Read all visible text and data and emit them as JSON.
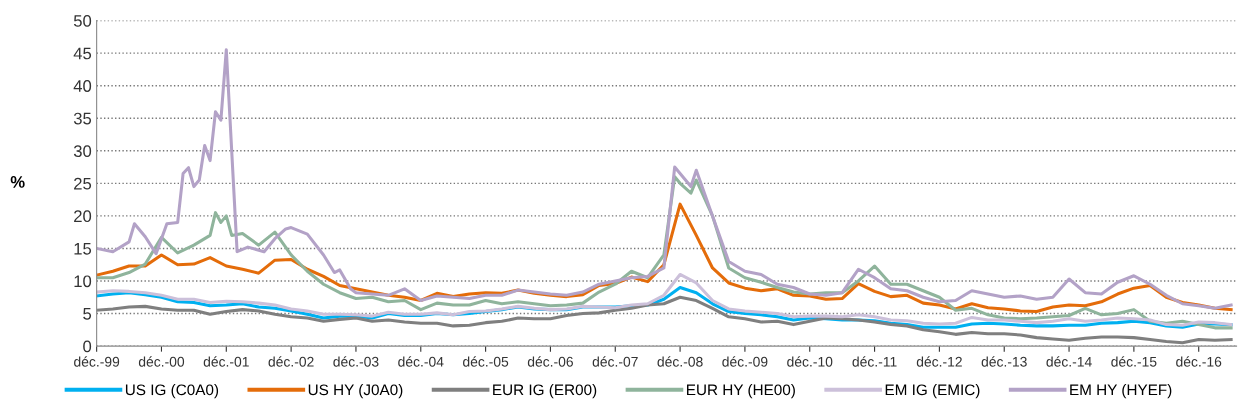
{
  "chart_data": {
    "type": "line",
    "ylabel": "%",
    "x": [
      "1999-12",
      "2000-03",
      "2000-06",
      "2000-09",
      "2000-12",
      "2001-03",
      "2001-06",
      "2001-09",
      "2001-12",
      "2002-03",
      "2002-06",
      "2002-09",
      "2002-12",
      "2003-03",
      "2003-06",
      "2003-09",
      "2003-12",
      "2004-03",
      "2004-06",
      "2004-09",
      "2004-12",
      "2005-03",
      "2005-06",
      "2005-09",
      "2005-12",
      "2006-03",
      "2006-06",
      "2006-09",
      "2006-12",
      "2007-03",
      "2007-06",
      "2007-09",
      "2007-12",
      "2008-03",
      "2008-06",
      "2008-09",
      "2008-12",
      "2009-03",
      "2009-06",
      "2009-09",
      "2009-12",
      "2010-03",
      "2010-06",
      "2010-09",
      "2010-12",
      "2011-03",
      "2011-06",
      "2011-09",
      "2011-12",
      "2012-03",
      "2012-06",
      "2012-09",
      "2012-12",
      "2013-03",
      "2013-06",
      "2013-09",
      "2013-12",
      "2014-03",
      "2014-06",
      "2014-09",
      "2014-12",
      "2015-03",
      "2015-06",
      "2015-09",
      "2015-12",
      "2016-03",
      "2016-06",
      "2016-09",
      "2016-12",
      "2017-03",
      "2017-06"
    ],
    "xlim": [
      "1999-12",
      "2017-07"
    ],
    "xticks": [
      {
        "value": "1999-12",
        "label": "déc.-99"
      },
      {
        "value": "2000-12",
        "label": "déc.-00"
      },
      {
        "value": "2001-12",
        "label": "déc.-01"
      },
      {
        "value": "2002-12",
        "label": "déc.-02"
      },
      {
        "value": "2003-12",
        "label": "déc.-03"
      },
      {
        "value": "2004-12",
        "label": "déc.-04"
      },
      {
        "value": "2005-12",
        "label": "déc.-05"
      },
      {
        "value": "2006-12",
        "label": "déc.-06"
      },
      {
        "value": "2007-12",
        "label": "déc.-07"
      },
      {
        "value": "2008-12",
        "label": "déc.-08"
      },
      {
        "value": "2009-12",
        "label": "déc.-09"
      },
      {
        "value": "2010-12",
        "label": "déc.-10"
      },
      {
        "value": "2011-12",
        "label": "déc.-11"
      },
      {
        "value": "2012-12",
        "label": "déc.-12"
      },
      {
        "value": "2013-12",
        "label": "déc.-13"
      },
      {
        "value": "2014-12",
        "label": "déc.-14"
      },
      {
        "value": "2015-12",
        "label": "déc.-15"
      },
      {
        "value": "2016-12",
        "label": "déc.-16"
      }
    ],
    "ylim": [
      0,
      50
    ],
    "yticks": [
      0,
      5,
      10,
      15,
      20,
      25,
      30,
      35,
      40,
      45,
      50
    ],
    "grid": "y",
    "legend": "bottom",
    "marker": "none",
    "line_style": "solid",
    "series": [
      {
        "name": "US IG (C0A0)",
        "color": "#00b0f0",
        "values": [
          7.7,
          8.0,
          8.2,
          7.9,
          7.5,
          6.8,
          6.7,
          6.2,
          6.3,
          6.5,
          6.0,
          5.8,
          5.4,
          4.9,
          4.3,
          4.6,
          4.6,
          4.3,
          5.0,
          4.7,
          4.7,
          5.0,
          4.8,
          5.0,
          5.3,
          5.6,
          6.0,
          5.7,
          5.6,
          5.6,
          6.0,
          6.0,
          6.0,
          6.2,
          6.3,
          7.2,
          9.0,
          8.2,
          6.5,
          5.3,
          5.0,
          4.8,
          4.5,
          4.0,
          4.3,
          4.2,
          4.0,
          4.0,
          3.9,
          3.5,
          3.3,
          2.9,
          2.9,
          2.9,
          3.4,
          3.5,
          3.4,
          3.2,
          3.1,
          3.1,
          3.2,
          3.2,
          3.5,
          3.6,
          3.8,
          3.6,
          3.1,
          2.9,
          3.4,
          3.4,
          3.3
        ]
      },
      {
        "name": "US HY (J0A0)",
        "color": "#e46c0a",
        "values": [
          10.9,
          11.5,
          12.3,
          12.3,
          14.0,
          12.5,
          12.6,
          13.6,
          12.3,
          11.8,
          11.2,
          13.2,
          13.3,
          11.8,
          10.7,
          9.3,
          8.8,
          8.3,
          7.8,
          7.5,
          7.0,
          8.1,
          7.6,
          8.0,
          8.2,
          8.1,
          8.6,
          8.1,
          7.8,
          7.6,
          7.9,
          9.3,
          9.6,
          10.6,
          9.9,
          12.5,
          21.8,
          17.0,
          12.0,
          9.7,
          8.9,
          8.5,
          8.8,
          7.8,
          7.7,
          7.2,
          7.3,
          9.6,
          8.4,
          7.6,
          7.8,
          6.6,
          6.3,
          5.7,
          6.5,
          5.9,
          5.7,
          5.4,
          5.3,
          6.0,
          6.3,
          6.2,
          6.8,
          8.0,
          8.9,
          9.3,
          7.5,
          6.7,
          6.3,
          5.8,
          5.6
        ]
      },
      {
        "name": "EUR IG (ER00)",
        "color": "#7f7f7f",
        "values": [
          5.5,
          5.7,
          6.0,
          6.1,
          5.7,
          5.5,
          5.5,
          4.9,
          5.3,
          5.6,
          5.4,
          4.9,
          4.5,
          4.3,
          3.8,
          4.1,
          4.3,
          3.8,
          4.0,
          3.7,
          3.5,
          3.5,
          3.1,
          3.2,
          3.6,
          3.8,
          4.3,
          4.2,
          4.2,
          4.7,
          5.0,
          5.1,
          5.5,
          5.8,
          6.3,
          6.5,
          7.5,
          7.0,
          5.8,
          4.5,
          4.2,
          3.7,
          3.8,
          3.3,
          3.8,
          4.3,
          4.2,
          4.0,
          3.7,
          3.3,
          3.1,
          2.5,
          2.2,
          1.8,
          2.1,
          1.9,
          1.9,
          1.7,
          1.3,
          1.1,
          0.9,
          1.2,
          1.4,
          1.4,
          1.3,
          1.0,
          0.7,
          0.5,
          1.0,
          0.9,
          1.0
        ]
      },
      {
        "name": "EUR HY (HE00)",
        "color": "#8fb49c",
        "x": [
          "1999-12",
          "2000-03",
          "2000-06",
          "2000-09",
          "2000-12",
          "2001-03",
          "2001-06",
          "2001-09",
          "2001-10",
          "2001-11",
          "2001-12",
          "2002-01",
          "2002-03",
          "2002-06",
          "2002-09",
          "2002-12",
          "2003-03",
          "2003-06",
          "2003-09",
          "2003-12",
          "2004-03",
          "2004-06",
          "2004-09",
          "2004-12",
          "2005-03",
          "2005-06",
          "2005-09",
          "2005-12",
          "2006-03",
          "2006-06",
          "2006-09",
          "2006-12",
          "2007-03",
          "2007-06",
          "2007-09",
          "2007-12",
          "2008-03",
          "2008-06",
          "2008-09",
          "2008-11",
          "2008-12",
          "2009-02",
          "2009-03",
          "2009-06",
          "2009-09",
          "2009-12",
          "2010-03",
          "2010-06",
          "2010-09",
          "2010-12",
          "2011-03",
          "2011-06",
          "2011-09",
          "2011-12",
          "2012-03",
          "2012-06",
          "2012-09",
          "2012-12",
          "2013-03",
          "2013-06",
          "2013-09",
          "2013-12",
          "2014-03",
          "2014-06",
          "2014-09",
          "2014-12",
          "2015-03",
          "2015-06",
          "2015-09",
          "2015-12",
          "2016-03",
          "2016-06",
          "2016-09",
          "2016-12",
          "2017-03",
          "2017-06"
        ],
        "values": [
          10.5,
          10.5,
          11.3,
          12.6,
          16.7,
          14.3,
          15.5,
          17.0,
          20.5,
          19.0,
          20.0,
          17.0,
          17.3,
          15.5,
          17.5,
          14.0,
          11.5,
          9.5,
          8.2,
          7.3,
          7.5,
          6.8,
          7.0,
          5.6,
          6.6,
          6.3,
          6.3,
          7.0,
          6.5,
          6.8,
          6.5,
          6.2,
          6.3,
          6.6,
          8.3,
          9.5,
          11.5,
          10.5,
          14.0,
          26.0,
          25.0,
          23.5,
          25.5,
          20.0,
          12.0,
          10.5,
          9.8,
          9.0,
          8.3,
          8.0,
          8.2,
          8.2,
          10.0,
          12.3,
          9.5,
          9.5,
          8.5,
          7.5,
          5.5,
          5.8,
          4.8,
          4.3,
          4.2,
          4.3,
          4.5,
          4.7,
          5.8,
          4.8,
          5.0,
          5.6,
          3.8,
          3.5,
          3.8,
          3.3,
          2.8,
          2.8
        ]
      },
      {
        "name": "EM IG (EMIC)",
        "color": "#ccc0da",
        "values": [
          8.3,
          8.5,
          8.4,
          8.2,
          7.8,
          7.2,
          7.2,
          6.7,
          6.9,
          6.8,
          6.6,
          6.3,
          5.7,
          5.4,
          4.9,
          4.9,
          4.8,
          4.6,
          5.2,
          4.9,
          4.9,
          5.1,
          4.8,
          5.3,
          5.4,
          5.7,
          6.1,
          5.8,
          5.6,
          5.7,
          6.1,
          6.0,
          5.9,
          6.3,
          6.5,
          7.8,
          11.0,
          9.7,
          7.0,
          5.7,
          5.4,
          5.2,
          5.0,
          4.5,
          4.6,
          4.6,
          4.5,
          4.8,
          4.5,
          4.0,
          3.9,
          3.5,
          3.4,
          3.5,
          4.4,
          4.0,
          4.0,
          3.8,
          3.6,
          3.8,
          4.2,
          3.8,
          4.0,
          4.3,
          4.2,
          4.0,
          3.3,
          3.2,
          3.7,
          3.6,
          3.3
        ]
      },
      {
        "name": "EM HY (HYEF)",
        "color": "#b3a2c7",
        "x": [
          "1999-12",
          "2000-03",
          "2000-06",
          "2000-07",
          "2000-09",
          "2000-11",
          "2001-01",
          "2001-03",
          "2001-04",
          "2001-05",
          "2001-06",
          "2001-07",
          "2001-08",
          "2001-09",
          "2001-10",
          "2001-11",
          "2001-12",
          "2002-02",
          "2002-04",
          "2002-07",
          "2002-09",
          "2002-11",
          "2002-12",
          "2003-03",
          "2003-06",
          "2003-08",
          "2003-09",
          "2003-11",
          "2003-12",
          "2004-03",
          "2004-06",
          "2004-09",
          "2004-12",
          "2005-03",
          "2005-06",
          "2005-09",
          "2005-12",
          "2006-03",
          "2006-06",
          "2006-09",
          "2006-12",
          "2007-03",
          "2007-06",
          "2007-09",
          "2007-12",
          "2008-03",
          "2008-06",
          "2008-09",
          "2008-11",
          "2008-12",
          "2009-02",
          "2009-03",
          "2009-06",
          "2009-09",
          "2009-12",
          "2010-03",
          "2010-06",
          "2010-09",
          "2010-12",
          "2011-03",
          "2011-06",
          "2011-09",
          "2011-12",
          "2012-03",
          "2012-06",
          "2012-09",
          "2012-12",
          "2013-03",
          "2013-06",
          "2013-09",
          "2013-12",
          "2014-03",
          "2014-06",
          "2014-09",
          "2014-12",
          "2015-03",
          "2015-06",
          "2015-09",
          "2015-12",
          "2016-03",
          "2016-06",
          "2016-09",
          "2016-12",
          "2017-03",
          "2017-06"
        ],
        "values": [
          15.0,
          14.5,
          16.0,
          18.8,
          16.8,
          14.2,
          18.8,
          19.0,
          26.5,
          27.4,
          24.5,
          25.5,
          30.8,
          28.5,
          36.0,
          34.7,
          45.5,
          14.5,
          15.2,
          14.5,
          16.5,
          18.0,
          18.2,
          17.2,
          14.0,
          11.3,
          11.7,
          8.8,
          8.2,
          8.0,
          7.8,
          8.8,
          7.0,
          7.7,
          7.5,
          7.3,
          7.8,
          7.8,
          8.6,
          8.3,
          8.0,
          7.8,
          8.3,
          9.5,
          10.0,
          10.5,
          10.7,
          12.0,
          27.5,
          26.5,
          24.5,
          27.0,
          20.0,
          13.0,
          11.5,
          11.0,
          9.5,
          9.0,
          8.0,
          7.8,
          8.2,
          11.8,
          10.5,
          8.8,
          8.5,
          7.5,
          6.8,
          7.0,
          8.5,
          8.0,
          7.5,
          7.7,
          7.2,
          7.5,
          10.3,
          8.2,
          8.0,
          9.8,
          10.8,
          9.5,
          7.8,
          6.5,
          6.2,
          5.8,
          6.3
        ]
      }
    ]
  }
}
